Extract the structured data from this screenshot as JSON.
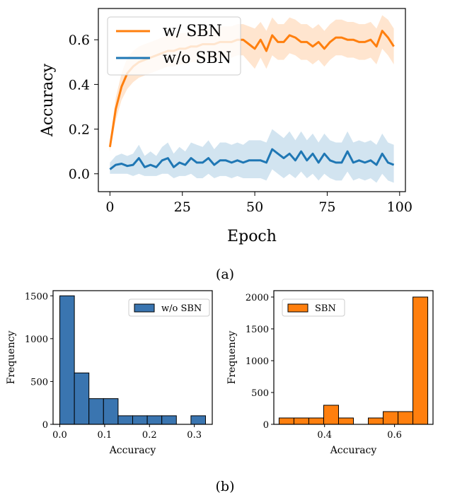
{
  "captions": {
    "a": "(a)",
    "b": "(b)"
  },
  "chart_data": [
    {
      "type": "line",
      "xlabel": "Epoch",
      "ylabel": "Accuracy",
      "xlim": [
        -4,
        102
      ],
      "ylim": [
        -0.08,
        0.74
      ],
      "xticks": [
        0,
        25,
        50,
        75,
        100
      ],
      "yticks": [
        0.0,
        0.2,
        0.4,
        0.6
      ],
      "legend_position": "top-left",
      "series": [
        {
          "name": "w/ SBN",
          "color": "#ff7f0e",
          "x": [
            0,
            2,
            4,
            6,
            8,
            10,
            12,
            14,
            16,
            18,
            20,
            22,
            24,
            26,
            28,
            30,
            32,
            34,
            36,
            38,
            40,
            42,
            44,
            46,
            48,
            50,
            52,
            54,
            56,
            58,
            60,
            62,
            64,
            66,
            68,
            70,
            72,
            74,
            76,
            78,
            80,
            82,
            84,
            86,
            88,
            90,
            92,
            94,
            96,
            98
          ],
          "y": [
            0.12,
            0.29,
            0.39,
            0.45,
            0.48,
            0.5,
            0.51,
            0.52,
            0.53,
            0.54,
            0.55,
            0.55,
            0.56,
            0.56,
            0.57,
            0.57,
            0.58,
            0.58,
            0.58,
            0.59,
            0.59,
            0.59,
            0.6,
            0.6,
            0.58,
            0.56,
            0.6,
            0.55,
            0.62,
            0.59,
            0.59,
            0.62,
            0.61,
            0.59,
            0.59,
            0.57,
            0.59,
            0.56,
            0.59,
            0.61,
            0.61,
            0.6,
            0.6,
            0.59,
            0.59,
            0.6,
            0.57,
            0.64,
            0.61,
            0.57
          ],
          "band_low": [
            0.1,
            0.24,
            0.33,
            0.38,
            0.41,
            0.43,
            0.44,
            0.45,
            0.46,
            0.47,
            0.48,
            0.48,
            0.49,
            0.49,
            0.5,
            0.5,
            0.51,
            0.51,
            0.51,
            0.52,
            0.52,
            0.52,
            0.53,
            0.53,
            0.5,
            0.47,
            0.52,
            0.47,
            0.53,
            0.51,
            0.51,
            0.54,
            0.53,
            0.51,
            0.51,
            0.49,
            0.51,
            0.48,
            0.51,
            0.53,
            0.53,
            0.52,
            0.52,
            0.51,
            0.51,
            0.52,
            0.49,
            0.56,
            0.53,
            0.49
          ],
          "band_high": [
            0.14,
            0.34,
            0.45,
            0.52,
            0.55,
            0.57,
            0.58,
            0.59,
            0.6,
            0.61,
            0.62,
            0.62,
            0.63,
            0.63,
            0.64,
            0.64,
            0.65,
            0.65,
            0.65,
            0.66,
            0.66,
            0.66,
            0.67,
            0.67,
            0.66,
            0.65,
            0.68,
            0.64,
            0.7,
            0.67,
            0.67,
            0.7,
            0.69,
            0.67,
            0.67,
            0.65,
            0.67,
            0.64,
            0.67,
            0.69,
            0.69,
            0.68,
            0.68,
            0.67,
            0.67,
            0.68,
            0.65,
            0.71,
            0.69,
            0.65
          ]
        },
        {
          "name": "w/o SBN",
          "color": "#1f77b4",
          "x": [
            0,
            2,
            4,
            6,
            8,
            10,
            12,
            14,
            16,
            18,
            20,
            22,
            24,
            26,
            28,
            30,
            32,
            34,
            36,
            38,
            40,
            42,
            44,
            46,
            48,
            50,
            52,
            54,
            56,
            58,
            60,
            62,
            64,
            66,
            68,
            70,
            72,
            74,
            76,
            78,
            80,
            82,
            84,
            86,
            88,
            90,
            92,
            94,
            96,
            98
          ],
          "y": [
            0.02,
            0.04,
            0.045,
            0.035,
            0.04,
            0.07,
            0.03,
            0.04,
            0.03,
            0.06,
            0.07,
            0.03,
            0.05,
            0.04,
            0.07,
            0.05,
            0.05,
            0.07,
            0.04,
            0.06,
            0.06,
            0.05,
            0.06,
            0.05,
            0.06,
            0.06,
            0.06,
            0.05,
            0.11,
            0.09,
            0.07,
            0.09,
            0.06,
            0.1,
            0.06,
            0.09,
            0.05,
            0.09,
            0.06,
            0.05,
            0.05,
            0.1,
            0.05,
            0.06,
            0.05,
            0.06,
            0.04,
            0.09,
            0.05,
            0.04
          ],
          "band_low": [
            0.0,
            0.0,
            0.0,
            0.0,
            -0.01,
            0.0,
            -0.01,
            -0.01,
            -0.01,
            0.0,
            0.0,
            -0.02,
            -0.01,
            -0.01,
            0.0,
            -0.02,
            -0.02,
            0.0,
            -0.02,
            -0.01,
            -0.01,
            -0.02,
            -0.01,
            -0.02,
            -0.02,
            -0.02,
            -0.02,
            -0.03,
            0.02,
            0.0,
            -0.02,
            0.0,
            -0.02,
            0.01,
            -0.02,
            0.0,
            -0.03,
            0.0,
            -0.02,
            -0.03,
            -0.03,
            0.01,
            -0.03,
            -0.02,
            -0.03,
            -0.02,
            -0.04,
            0.0,
            -0.03,
            -0.04
          ],
          "band_high": [
            0.05,
            0.08,
            0.09,
            0.08,
            0.09,
            0.13,
            0.08,
            0.1,
            0.08,
            0.12,
            0.14,
            0.09,
            0.12,
            0.1,
            0.14,
            0.13,
            0.12,
            0.15,
            0.11,
            0.14,
            0.14,
            0.13,
            0.14,
            0.13,
            0.15,
            0.15,
            0.15,
            0.14,
            0.2,
            0.18,
            0.16,
            0.19,
            0.15,
            0.19,
            0.15,
            0.18,
            0.14,
            0.18,
            0.15,
            0.14,
            0.14,
            0.19,
            0.14,
            0.15,
            0.14,
            0.15,
            0.13,
            0.18,
            0.14,
            0.13
          ]
        }
      ]
    },
    {
      "type": "bar",
      "subtype": "histogram",
      "xlabel": "Accuracy",
      "ylabel": "Frequency",
      "xlim": [
        -0.015,
        0.34
      ],
      "ylim": [
        0,
        1560
      ],
      "xticks": [
        0.0,
        0.1,
        0.2,
        0.3
      ],
      "xtick_labels": [
        "0.0",
        "0.1",
        "0.2",
        "0.3"
      ],
      "yticks": [
        0,
        500,
        1000,
        1500
      ],
      "legend_position": "top-right",
      "bin_width": 0.0325,
      "bins": [
        0.0,
        0.0325,
        0.065,
        0.0975,
        0.13,
        0.1625,
        0.195,
        0.2275,
        0.26,
        0.2925
      ],
      "series": [
        {
          "name": "w/o SBN",
          "color": "#3a75b0",
          "values": [
            1500,
            600,
            300,
            300,
            100,
            100,
            100,
            100,
            0,
            100
          ]
        }
      ]
    },
    {
      "type": "bar",
      "subtype": "histogram",
      "xlabel": "Accuracy",
      "ylabel": "Frequency",
      "xlim": [
        0.255,
        0.71
      ],
      "ylim": [
        0,
        2100
      ],
      "xticks": [
        0.4,
        0.6
      ],
      "xtick_labels": [
        "0.4",
        "0.6"
      ],
      "yticks": [
        0,
        500,
        1000,
        1500,
        2000
      ],
      "legend_position": "top-left",
      "bin_width": 0.0425,
      "bins": [
        0.27,
        0.3125,
        0.355,
        0.3975,
        0.44,
        0.4825,
        0.525,
        0.5675,
        0.61,
        0.6525
      ],
      "series": [
        {
          "name": "SBN",
          "color": "#ff7f0e",
          "values": [
            100,
            100,
            100,
            300,
            100,
            0,
            100,
            200,
            200,
            2000
          ]
        }
      ]
    }
  ]
}
